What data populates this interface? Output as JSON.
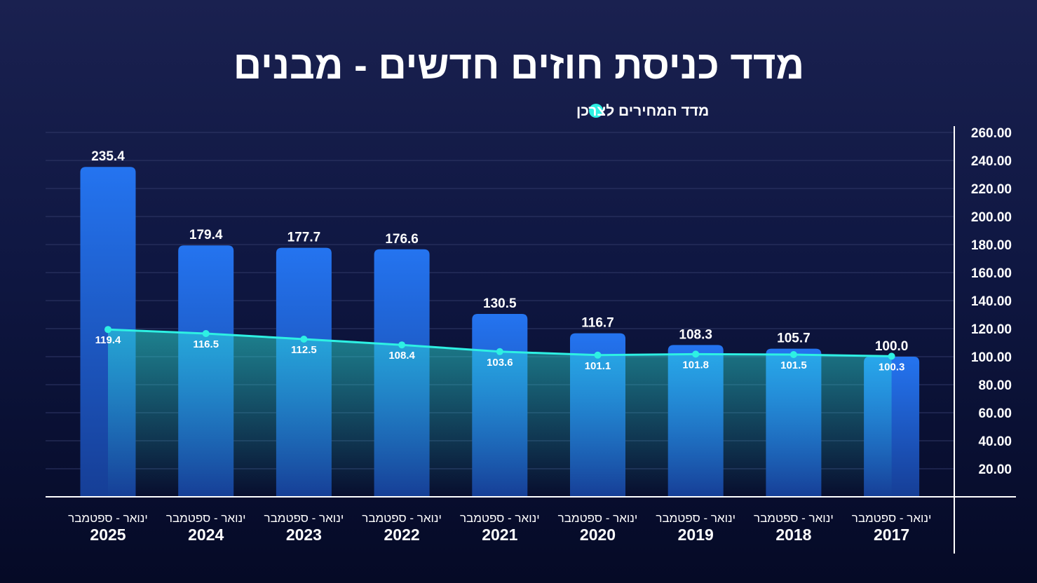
{
  "chart_data": {
    "type": "bar",
    "title": "מדד כניסת חוזים חדשים - מבנים",
    "legend": [
      "מדד המחירים לצרכן"
    ],
    "legend_placement": "top-center",
    "categories": [
      {
        "range": "ינואר - ספטמבר",
        "year": "2025"
      },
      {
        "range": "ינואר - ספטמבר",
        "year": "2024"
      },
      {
        "range": "ינואר - ספטמבר",
        "year": "2023"
      },
      {
        "range": "ינואר - ספטמבר",
        "year": "2022"
      },
      {
        "range": "ינואר - ספטמבר",
        "year": "2021"
      },
      {
        "range": "ינואר - ספטמבר",
        "year": "2020"
      },
      {
        "range": "ינואר - ספטמבר",
        "year": "2019"
      },
      {
        "range": "ינואר - ספטמבר",
        "year": "2018"
      },
      {
        "range": "ינואר - ספטמבר",
        "year": "2017"
      }
    ],
    "series": [
      {
        "name": "מדד כניסת חוזים חדשים - מבנים",
        "kind": "bar",
        "values": [
          235.4,
          179.4,
          177.7,
          176.6,
          130.5,
          116.7,
          108.3,
          105.7,
          100.0
        ],
        "labels": [
          "235.4",
          "179.4",
          "177.7",
          "176.6",
          "130.5",
          "116.7",
          "108.3",
          "105.7",
          "100.0"
        ]
      },
      {
        "name": "מדד המחירים לצרכן",
        "kind": "line",
        "values": [
          119.4,
          116.5,
          112.5,
          108.4,
          103.6,
          101.1,
          101.8,
          101.5,
          100.3
        ],
        "labels": [
          "119.4",
          "116.5",
          "112.5",
          "108.4",
          "103.6",
          "101.1",
          "101.8",
          "101.5",
          "100.3"
        ]
      }
    ],
    "y_axis": {
      "position": "right",
      "ylim": [
        0,
        260
      ],
      "ticks": [
        20,
        40,
        60,
        80,
        100,
        120,
        140,
        160,
        180,
        200,
        220,
        240,
        260
      ],
      "tick_labels": [
        "20.00",
        "40.00",
        "60.00",
        "80.00",
        "100.00",
        "120.00",
        "140.00",
        "160.00",
        "180.00",
        "200.00",
        "220.00",
        "240.00",
        "260.00"
      ]
    },
    "grid": true,
    "colors": {
      "bar_top": "#2474f0",
      "bar_bottom": "#163e96",
      "line": "#2ef0e3",
      "grid": "#2f3766",
      "axis": "#ffffff"
    }
  }
}
